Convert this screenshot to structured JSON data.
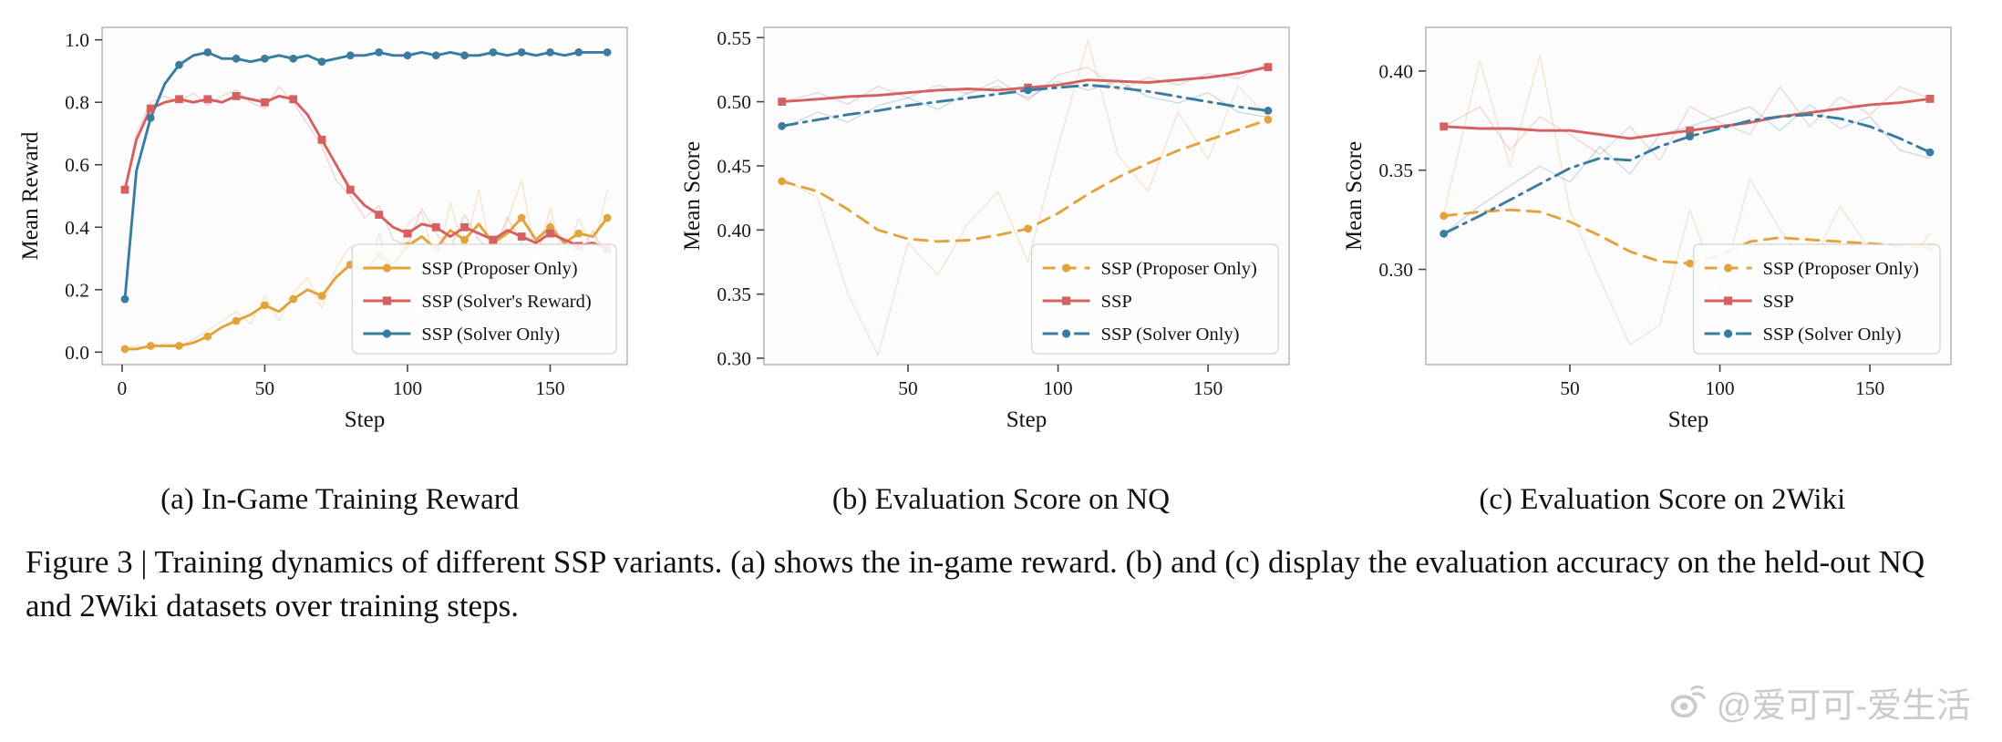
{
  "figure": {
    "subcaptions": [
      "(a) In-Game Training Reward",
      "(b) Evaluation Score on NQ",
      "(c) Evaluation Score on 2Wiki"
    ],
    "caption": "Figure 3 | Training dynamics of different SSP variants. (a) shows the in-game reward. (b) and (c) display the evaluation accuracy on the held-out NQ and 2Wiki datasets over training steps."
  },
  "watermark": {
    "icon": "weibo-icon",
    "text": "@爱可可-爱生活"
  },
  "colors": {
    "orange": "#E2A33D",
    "red": "#D65F5F",
    "blue": "#3A7CA0",
    "spine": "#b5b5b5",
    "plot_bg": "#fcfcfc"
  },
  "chart_data": [
    {
      "type": "line",
      "panel": "a",
      "title": "In-Game Training Reward",
      "xlabel": "Step",
      "ylabel": "Mean Reward",
      "xlim": [
        -7,
        177
      ],
      "ylim": [
        -0.04,
        1.04
      ],
      "xticks": [
        0,
        50,
        100,
        150
      ],
      "yticks": [
        0.0,
        0.2,
        0.4,
        0.6,
        0.8,
        1.0
      ],
      "ydecimals": 1,
      "grid": false,
      "legend": {
        "position": "lower right",
        "entries": [
          "SSP (Proposer Only)",
          "SSP (Solver's Reward)",
          "SSP (Solver Only)"
        ]
      },
      "x": [
        1,
        5,
        10,
        15,
        20,
        25,
        30,
        35,
        40,
        45,
        50,
        55,
        60,
        65,
        70,
        75,
        80,
        85,
        90,
        95,
        100,
        105,
        110,
        115,
        120,
        125,
        130,
        135,
        140,
        145,
        150,
        155,
        160,
        165,
        170
      ],
      "series": [
        {
          "name": "SSP (Proposer Only)",
          "color": "#E2A33D",
          "style": "solid",
          "marker": "circle",
          "marker_every": 2,
          "values": [
            0.01,
            0.01,
            0.02,
            0.02,
            0.02,
            0.03,
            0.05,
            0.08,
            0.1,
            0.12,
            0.15,
            0.13,
            0.17,
            0.2,
            0.18,
            0.24,
            0.28,
            0.26,
            0.31,
            0.28,
            0.34,
            0.37,
            0.33,
            0.39,
            0.36,
            0.41,
            0.35,
            0.38,
            0.43,
            0.36,
            0.4,
            0.35,
            0.38,
            0.37,
            0.43
          ],
          "raw": [
            0.01,
            0.02,
            0.01,
            0.03,
            0.02,
            0.04,
            0.07,
            0.1,
            0.13,
            0.09,
            0.18,
            0.1,
            0.19,
            0.24,
            0.14,
            0.27,
            0.34,
            0.2,
            0.38,
            0.23,
            0.41,
            0.45,
            0.27,
            0.48,
            0.32,
            0.52,
            0.28,
            0.42,
            0.55,
            0.3,
            0.46,
            0.29,
            0.43,
            0.32,
            0.52
          ]
        },
        {
          "name": "SSP (Solver's Reward)",
          "color": "#D65F5F",
          "style": "solid",
          "marker": "square",
          "marker_every": 2,
          "values": [
            0.52,
            0.68,
            0.78,
            0.8,
            0.81,
            0.8,
            0.81,
            0.8,
            0.82,
            0.81,
            0.8,
            0.82,
            0.81,
            0.76,
            0.68,
            0.6,
            0.52,
            0.47,
            0.44,
            0.4,
            0.38,
            0.41,
            0.4,
            0.37,
            0.4,
            0.38,
            0.36,
            0.39,
            0.37,
            0.35,
            0.38,
            0.36,
            0.34,
            0.35,
            0.33
          ],
          "raw": [
            0.52,
            0.7,
            0.8,
            0.82,
            0.8,
            0.83,
            0.79,
            0.82,
            0.84,
            0.8,
            0.78,
            0.85,
            0.8,
            0.73,
            0.66,
            0.55,
            0.5,
            0.43,
            0.47,
            0.36,
            0.34,
            0.46,
            0.38,
            0.33,
            0.44,
            0.36,
            0.32,
            0.43,
            0.35,
            0.31,
            0.42,
            0.34,
            0.3,
            0.39,
            0.29
          ]
        },
        {
          "name": "SSP (Solver Only)",
          "color": "#3A7CA0",
          "style": "solid",
          "marker": "circle",
          "marker_every": 2,
          "values": [
            0.17,
            0.58,
            0.75,
            0.86,
            0.92,
            0.95,
            0.96,
            0.94,
            0.94,
            0.93,
            0.94,
            0.95,
            0.94,
            0.95,
            0.93,
            0.94,
            0.95,
            0.95,
            0.96,
            0.95,
            0.95,
            0.96,
            0.95,
            0.96,
            0.95,
            0.95,
            0.96,
            0.95,
            0.96,
            0.95,
            0.96,
            0.95,
            0.96,
            0.96,
            0.96
          ]
        }
      ]
    },
    {
      "type": "line",
      "panel": "b",
      "title": "Evaluation Score on NQ",
      "xlabel": "Step",
      "ylabel": "Mean Score",
      "xlim": [
        2,
        177
      ],
      "ylim": [
        0.295,
        0.558
      ],
      "xticks": [
        50,
        100,
        150
      ],
      "yticks": [
        0.3,
        0.35,
        0.4,
        0.45,
        0.5,
        0.55
      ],
      "ydecimals": 2,
      "grid": false,
      "legend": {
        "position": "lower right",
        "entries": [
          "SSP (Proposer Only)",
          "SSP",
          "SSP (Solver Only)"
        ]
      },
      "x": [
        8,
        20,
        30,
        40,
        50,
        60,
        70,
        80,
        90,
        100,
        110,
        120,
        130,
        140,
        150,
        160,
        170
      ],
      "series": [
        {
          "name": "SSP (Proposer Only)",
          "color": "#E2A33D",
          "style": "dashed",
          "marker": "circle",
          "marker_every": 8,
          "values": [
            0.438,
            0.43,
            0.416,
            0.4,
            0.393,
            0.391,
            0.392,
            0.396,
            0.401,
            0.413,
            0.428,
            0.441,
            0.452,
            0.462,
            0.47,
            0.478,
            0.486
          ],
          "raw": [
            0.44,
            0.425,
            0.35,
            0.302,
            0.39,
            0.365,
            0.405,
            0.43,
            0.375,
            0.465,
            0.548,
            0.458,
            0.43,
            0.492,
            0.455,
            0.512,
            0.488
          ]
        },
        {
          "name": "SSP",
          "color": "#D65F5F",
          "style": "solid",
          "marker": "square",
          "marker_every": 8,
          "values": [
            0.5,
            0.502,
            0.504,
            0.505,
            0.507,
            0.509,
            0.51,
            0.509,
            0.511,
            0.513,
            0.517,
            0.516,
            0.515,
            0.517,
            0.519,
            0.522,
            0.527
          ],
          "raw": [
            0.5,
            0.507,
            0.498,
            0.512,
            0.503,
            0.513,
            0.506,
            0.517,
            0.501,
            0.521,
            0.527,
            0.509,
            0.519,
            0.513,
            0.522,
            0.518,
            0.53
          ]
        },
        {
          "name": "SSP (Solver Only)",
          "color": "#3A7CA0",
          "style": "dashdot",
          "marker": "circle",
          "marker_every": 8,
          "values": [
            0.481,
            0.486,
            0.49,
            0.493,
            0.497,
            0.5,
            0.503,
            0.506,
            0.509,
            0.511,
            0.513,
            0.511,
            0.508,
            0.504,
            0.5,
            0.496,
            0.493
          ],
          "raw": [
            0.479,
            0.492,
            0.484,
            0.497,
            0.503,
            0.494,
            0.507,
            0.512,
            0.503,
            0.516,
            0.509,
            0.516,
            0.504,
            0.499,
            0.507,
            0.492,
            0.488
          ]
        }
      ]
    },
    {
      "type": "line",
      "panel": "c",
      "title": "Evaluation Score on 2Wiki",
      "xlabel": "Step",
      "ylabel": "Mean Score",
      "xlim": [
        2,
        177
      ],
      "ylim": [
        0.252,
        0.422
      ],
      "xticks": [
        50,
        100,
        150
      ],
      "yticks": [
        0.3,
        0.35,
        0.4
      ],
      "ydecimals": 2,
      "grid": false,
      "legend": {
        "position": "lower right",
        "entries": [
          "SSP (Proposer Only)",
          "SSP",
          "SSP (Solver Only)"
        ]
      },
      "x": [
        8,
        20,
        30,
        40,
        50,
        60,
        70,
        80,
        90,
        100,
        110,
        120,
        130,
        140,
        150,
        160,
        170
      ],
      "series": [
        {
          "name": "SSP (Proposer Only)",
          "color": "#E2A33D",
          "style": "dashed",
          "marker": "circle",
          "marker_every": 8,
          "values": [
            0.327,
            0.329,
            0.33,
            0.329,
            0.324,
            0.317,
            0.309,
            0.304,
            0.303,
            0.307,
            0.314,
            0.316,
            0.315,
            0.314,
            0.313,
            0.312,
            0.311
          ],
          "raw": [
            0.328,
            0.405,
            0.352,
            0.408,
            0.33,
            0.295,
            0.262,
            0.272,
            0.33,
            0.288,
            0.346,
            0.32,
            0.3,
            0.332,
            0.31,
            0.298,
            0.318
          ]
        },
        {
          "name": "SSP",
          "color": "#D65F5F",
          "style": "solid",
          "marker": "square",
          "marker_every": 8,
          "values": [
            0.372,
            0.371,
            0.371,
            0.37,
            0.37,
            0.368,
            0.366,
            0.368,
            0.37,
            0.372,
            0.374,
            0.377,
            0.379,
            0.381,
            0.383,
            0.384,
            0.386
          ],
          "raw": [
            0.372,
            0.382,
            0.36,
            0.377,
            0.368,
            0.358,
            0.372,
            0.355,
            0.382,
            0.374,
            0.368,
            0.392,
            0.372,
            0.387,
            0.378,
            0.392,
            0.386
          ]
        },
        {
          "name": "SSP (Solver Only)",
          "color": "#3A7CA0",
          "style": "dashdot",
          "marker": "circle",
          "marker_every": 8,
          "values": [
            0.318,
            0.327,
            0.335,
            0.343,
            0.351,
            0.356,
            0.355,
            0.362,
            0.367,
            0.371,
            0.375,
            0.377,
            0.378,
            0.376,
            0.372,
            0.366,
            0.359
          ],
          "raw": [
            0.318,
            0.332,
            0.342,
            0.352,
            0.344,
            0.362,
            0.348,
            0.368,
            0.372,
            0.377,
            0.382,
            0.37,
            0.383,
            0.371,
            0.377,
            0.36,
            0.356
          ]
        }
      ]
    }
  ]
}
